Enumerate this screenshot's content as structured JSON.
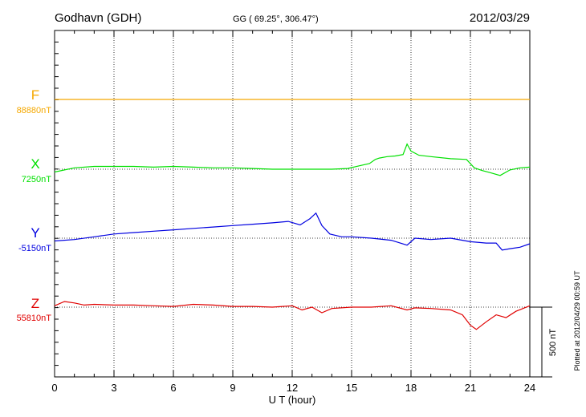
{
  "header": {
    "station": "Godhavn (GDH)",
    "coords": "GG ( 69.25°, 306.47°)",
    "date": "2012/03/29"
  },
  "footer": {
    "plotted_note": "Plotted at 2012/04/29 00:59 UT",
    "scale_label": "500 nT"
  },
  "chart_data": {
    "type": "line",
    "xlabel": "U T (hour)",
    "xlim": [
      0,
      24
    ],
    "xticks": [
      "0",
      "3",
      "6",
      "9",
      "12",
      "15",
      "18",
      "21",
      "24"
    ],
    "grid": true,
    "scale_bar_nT": 500,
    "series": [
      {
        "name": "F",
        "baseline_label": "88880nT",
        "color": "#f5a800",
        "baseline": 88880,
        "x": [
          0,
          24
        ],
        "y": [
          88880,
          88880
        ]
      },
      {
        "name": "X",
        "baseline_label": "7250nT",
        "color": "#00e000",
        "baseline": 7250,
        "x": [
          0,
          1,
          2,
          3,
          4,
          5,
          6,
          7,
          8,
          9,
          10,
          11,
          12,
          13,
          14,
          14.8,
          15.4,
          15.9,
          16.2,
          16.4,
          16.8,
          17.2,
          17.6,
          17.8,
          18.0,
          18.4,
          19,
          20,
          20.8,
          21.2,
          21.6,
          22,
          22.5,
          23,
          23.5,
          24
        ],
        "y": [
          7230,
          7260,
          7270,
          7270,
          7270,
          7265,
          7270,
          7265,
          7260,
          7260,
          7255,
          7250,
          7250,
          7250,
          7250,
          7255,
          7275,
          7290,
          7320,
          7330,
          7340,
          7345,
          7355,
          7430,
          7380,
          7350,
          7340,
          7325,
          7320,
          7260,
          7240,
          7225,
          7205,
          7245,
          7260,
          7265
        ]
      },
      {
        "name": "Y",
        "baseline_label": "-5150nT",
        "color": "#0000e0",
        "baseline": -5150,
        "x": [
          0,
          1,
          2,
          3,
          4,
          5,
          6,
          7,
          8,
          9,
          10,
          11,
          11.8,
          12.4,
          12.9,
          13.2,
          13.5,
          13.9,
          14.5,
          15,
          16,
          17,
          17.8,
          18.2,
          19,
          20,
          21,
          21.8,
          22.3,
          22.6,
          23,
          23.5,
          24
        ],
        "y": [
          -5170,
          -5160,
          -5140,
          -5120,
          -5110,
          -5100,
          -5090,
          -5080,
          -5070,
          -5060,
          -5050,
          -5040,
          -5030,
          -5055,
          -5010,
          -4970,
          -5060,
          -5120,
          -5140,
          -5140,
          -5150,
          -5165,
          -5200,
          -5150,
          -5160,
          -5150,
          -5175,
          -5185,
          -5185,
          -5235,
          -5225,
          -5215,
          -5190
        ]
      },
      {
        "name": "Z",
        "baseline_label": "55810nT",
        "color": "#e00000",
        "baseline": 55810,
        "x": [
          0,
          0.5,
          1,
          1.5,
          2,
          3,
          4,
          5,
          6,
          7,
          8,
          9,
          10,
          11,
          12,
          12.5,
          13,
          13.5,
          14,
          15,
          16,
          17,
          17.8,
          18.2,
          19,
          20,
          20.6,
          21,
          21.3,
          21.8,
          22.3,
          22.8,
          23.3,
          24
        ],
        "y": [
          55820,
          55850,
          55840,
          55825,
          55830,
          55825,
          55825,
          55820,
          55815,
          55830,
          55825,
          55815,
          55815,
          55810,
          55820,
          55790,
          55810,
          55770,
          55800,
          55810,
          55810,
          55820,
          55790,
          55805,
          55800,
          55790,
          55755,
          55680,
          55650,
          55705,
          55755,
          55735,
          55780,
          55820
        ]
      }
    ]
  }
}
